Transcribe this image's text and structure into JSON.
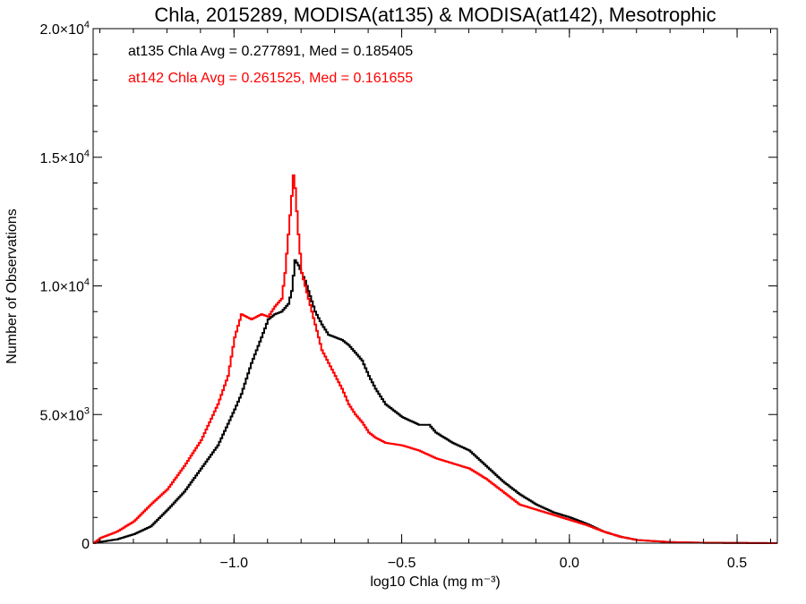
{
  "chart_data": {
    "type": "line",
    "title": "Chla, 2015289, MODISA(at135) & MODISA(at142), Mesotrophic",
    "xlabel": "log10 Chla (mg m⁻³)",
    "ylabel": "Number of Observations",
    "xlim": [
      -1.42,
      0.62
    ],
    "ylim": [
      0,
      20000
    ],
    "x_ticks": [
      {
        "value": -1.0,
        "label": "−1.0"
      },
      {
        "value": -0.5,
        "label": "−0.5"
      },
      {
        "value": 0.0,
        "label": "0.0"
      },
      {
        "value": 0.5,
        "label": "0.5"
      }
    ],
    "y_ticks": [
      {
        "value": 0,
        "label": "0",
        "exp": ""
      },
      {
        "value": 5000,
        "label": "5.0×10",
        "exp": "3"
      },
      {
        "value": 10000,
        "label": "1.0×10",
        "exp": "4"
      },
      {
        "value": 15000,
        "label": "1.5×10",
        "exp": "4"
      },
      {
        "value": 20000,
        "label": "2.0×10",
        "exp": "4"
      }
    ],
    "annotations": [
      {
        "text": "at135 Chla Avg = 0.277891, Med = 0.185405",
        "color": "#000000"
      },
      {
        "text": "at142 Chla Avg = 0.261525, Med = 0.161655",
        "color": "#ff0000"
      }
    ],
    "legend": "top-left",
    "grid": false,
    "series": [
      {
        "color": "#000000",
        "points": [
          [
            -1.42,
            0
          ],
          [
            -1.4,
            50
          ],
          [
            -1.35,
            150
          ],
          [
            -1.3,
            350
          ],
          [
            -1.25,
            650
          ],
          [
            -1.2,
            1300
          ],
          [
            -1.15,
            2000
          ],
          [
            -1.1,
            2900
          ],
          [
            -1.05,
            3800
          ],
          [
            -1.0,
            5200
          ],
          [
            -0.98,
            5800
          ],
          [
            -0.95,
            7000
          ],
          [
            -0.92,
            8000
          ],
          [
            -0.9,
            8700
          ],
          [
            -0.88,
            8900
          ],
          [
            -0.86,
            9000
          ],
          [
            -0.84,
            9300
          ],
          [
            -0.83,
            9800
          ],
          [
            -0.82,
            11000
          ],
          [
            -0.81,
            10800
          ],
          [
            -0.8,
            10500
          ],
          [
            -0.79,
            10200
          ],
          [
            -0.78,
            9800
          ],
          [
            -0.76,
            9000
          ],
          [
            -0.74,
            8500
          ],
          [
            -0.72,
            8100
          ],
          [
            -0.7,
            8000
          ],
          [
            -0.68,
            7900
          ],
          [
            -0.66,
            7700
          ],
          [
            -0.64,
            7400
          ],
          [
            -0.62,
            7100
          ],
          [
            -0.6,
            6500
          ],
          [
            -0.58,
            6000
          ],
          [
            -0.55,
            5400
          ],
          [
            -0.5,
            4900
          ],
          [
            -0.45,
            4600
          ],
          [
            -0.42,
            4600
          ],
          [
            -0.4,
            4300
          ],
          [
            -0.35,
            3900
          ],
          [
            -0.3,
            3600
          ],
          [
            -0.25,
            3000
          ],
          [
            -0.2,
            2400
          ],
          [
            -0.15,
            1900
          ],
          [
            -0.1,
            1500
          ],
          [
            -0.05,
            1200
          ],
          [
            0.0,
            1000
          ],
          [
            0.05,
            750
          ],
          [
            0.1,
            450
          ],
          [
            0.15,
            250
          ],
          [
            0.2,
            120
          ],
          [
            0.3,
            40
          ],
          [
            0.4,
            15
          ],
          [
            0.62,
            0
          ]
        ]
      },
      {
        "color": "#ff0000",
        "points": [
          [
            -1.42,
            0
          ],
          [
            -1.4,
            200
          ],
          [
            -1.35,
            450
          ],
          [
            -1.3,
            850
          ],
          [
            -1.25,
            1500
          ],
          [
            -1.2,
            2100
          ],
          [
            -1.15,
            3000
          ],
          [
            -1.1,
            4000
          ],
          [
            -1.05,
            5400
          ],
          [
            -1.02,
            6500
          ],
          [
            -1.0,
            8000
          ],
          [
            -0.98,
            8900
          ],
          [
            -0.95,
            8700
          ],
          [
            -0.92,
            8900
          ],
          [
            -0.9,
            8800
          ],
          [
            -0.88,
            9200
          ],
          [
            -0.86,
            9500
          ],
          [
            -0.85,
            10500
          ],
          [
            -0.84,
            12000
          ],
          [
            -0.83,
            13500
          ],
          [
            -0.825,
            14300
          ],
          [
            -0.82,
            13800
          ],
          [
            -0.81,
            12000
          ],
          [
            -0.8,
            10500
          ],
          [
            -0.78,
            9500
          ],
          [
            -0.76,
            8500
          ],
          [
            -0.74,
            7500
          ],
          [
            -0.72,
            7000
          ],
          [
            -0.7,
            6500
          ],
          [
            -0.68,
            6000
          ],
          [
            -0.66,
            5400
          ],
          [
            -0.64,
            5000
          ],
          [
            -0.62,
            4700
          ],
          [
            -0.6,
            4300
          ],
          [
            -0.58,
            4100
          ],
          [
            -0.55,
            3900
          ],
          [
            -0.5,
            3800
          ],
          [
            -0.45,
            3600
          ],
          [
            -0.4,
            3300
          ],
          [
            -0.35,
            3100
          ],
          [
            -0.3,
            2900
          ],
          [
            -0.25,
            2500
          ],
          [
            -0.2,
            2000
          ],
          [
            -0.15,
            1500
          ],
          [
            -0.1,
            1300
          ],
          [
            -0.05,
            1100
          ],
          [
            0.0,
            900
          ],
          [
            0.05,
            700
          ],
          [
            0.1,
            450
          ],
          [
            0.15,
            250
          ],
          [
            0.2,
            120
          ],
          [
            0.3,
            40
          ],
          [
            0.4,
            15
          ],
          [
            0.62,
            0
          ]
        ]
      }
    ]
  }
}
